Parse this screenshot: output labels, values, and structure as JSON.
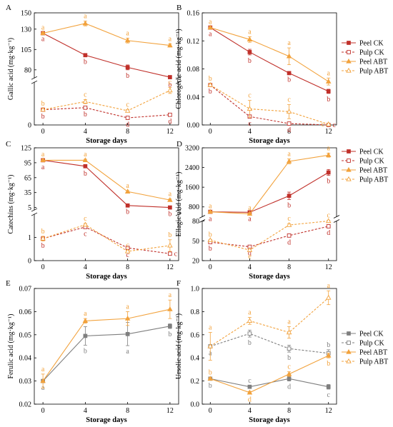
{
  "colors": {
    "peel_ck": "#c0302a",
    "pulp_ck": "#c0302a",
    "peel_abt": "#f2a23c",
    "pulp_abt": "#f2a23c",
    "grey": "#7f7f7f"
  },
  "chart_data": [
    {
      "type": "line",
      "panel": "A",
      "xlabel": "Storage days",
      "ylabel": "Gallic acid  (mg·kg⁻¹)",
      "x": [
        0,
        4,
        8,
        12
      ],
      "broken_axis": true,
      "upper": {
        "ylim": [
          70,
          150
        ],
        "ticks": [
          80,
          105,
          130,
          150
        ],
        "tick_labels": [
          "80",
          "105",
          "130",
          "150"
        ]
      },
      "lower": {
        "ylim": [
          0,
          42
        ],
        "ticks": [
          0
        ],
        "tick_labels": [
          "0"
        ]
      },
      "series": [
        {
          "name": "Peel CK",
          "style": "solid-filled",
          "colorKey": "peel_ck",
          "part": "upper",
          "values": [
            125,
            98,
            83,
            71
          ],
          "err": [
            0,
            1,
            3,
            2
          ],
          "letters": [
            "a",
            "b",
            "b",
            "b"
          ],
          "letter_pos": [
            "below",
            "below",
            "below",
            "below"
          ]
        },
        {
          "name": "Pulp CK",
          "style": "dash-open",
          "colorKey": "pulp_ck",
          "part": "lower",
          "values": [
            15,
            17,
            7,
            10
          ],
          "err": [
            1,
            1,
            1,
            1
          ],
          "letters": [
            "b",
            "b",
            "d",
            "d"
          ],
          "letter_pos": [
            "below",
            "below",
            "below",
            "below"
          ]
        },
        {
          "name": "Peel ABT",
          "style": "solid-filled",
          "colorKey": "peel_abt",
          "part": "upper",
          "values": [
            125,
            137,
            116,
            110
          ],
          "err": [
            1,
            3,
            3,
            2
          ],
          "letters": [
            "a",
            "a",
            "a",
            "a"
          ],
          "letter_pos": [
            "above",
            "above",
            "above",
            "above"
          ]
        },
        {
          "name": "Pulp ABT",
          "style": "dash-open",
          "colorKey": "pulp_abt",
          "part": "lower",
          "values": [
            15,
            23,
            14,
            34
          ],
          "err": [
            1,
            2,
            1,
            3
          ],
          "letters": [
            "b",
            "c",
            "c",
            "c"
          ],
          "letter_pos": [
            "above",
            "above",
            "above",
            "above"
          ]
        }
      ]
    },
    {
      "type": "line",
      "panel": "B",
      "xlabel": "Storage days",
      "ylabel": "Chlorogenic acid  (mg·kg⁻¹)",
      "x": [
        0,
        4,
        8,
        12
      ],
      "broken_axis": false,
      "main": {
        "ylim": [
          0,
          0.16
        ],
        "ticks": [
          0,
          0.04,
          0.08,
          0.12,
          0.16
        ],
        "tick_labels": [
          "0.00",
          "0.04",
          "0.08",
          "0.12",
          "0.16"
        ]
      },
      "legend": [
        "Peel CK",
        "Pulp CK",
        "Peel ABT",
        "Pulp ABT"
      ],
      "series": [
        {
          "name": "Peel CK",
          "style": "solid-filled",
          "colorKey": "peel_ck",
          "part": "main",
          "values": [
            0.139,
            0.104,
            0.074,
            0.048
          ],
          "err": [
            0.001,
            0.004,
            0.001,
            0.003
          ],
          "letters": [
            "a",
            "b",
            "b",
            "b"
          ],
          "letter_pos": [
            "below",
            "below",
            "below",
            "below"
          ]
        },
        {
          "name": "Pulp CK",
          "style": "dash-open",
          "colorKey": "pulp_ck",
          "part": "main",
          "values": [
            0.057,
            0.012,
            0.002,
            0.0
          ],
          "err": [
            0.001,
            0.002,
            0.001,
            0.0
          ],
          "letters": [
            "b",
            "c",
            "d",
            "c"
          ],
          "letter_pos": [
            "below",
            "below",
            "below",
            "right"
          ]
        },
        {
          "name": "Peel ABT",
          "style": "solid-filled",
          "colorKey": "peel_abt",
          "part": "main",
          "values": [
            0.139,
            0.122,
            0.098,
            0.062
          ],
          "err": [
            0.001,
            0.004,
            0.012,
            0.005
          ],
          "letters": [
            "a",
            "a",
            "a",
            "a"
          ],
          "letter_pos": [
            "above",
            "above",
            "above",
            "above"
          ]
        },
        {
          "name": "Pulp ABT",
          "style": "dash-open",
          "colorKey": "pulp_abt",
          "part": "main",
          "values": [
            0.057,
            0.023,
            0.019,
            0.001
          ],
          "err": [
            0.002,
            0.012,
            0.01,
            0.001
          ],
          "letters": [
            "b",
            "c",
            "c",
            "c"
          ],
          "letter_pos": [
            "above",
            "above",
            "above",
            "left"
          ]
        }
      ]
    },
    {
      "type": "line",
      "panel": "C",
      "xlabel": "Storage days",
      "ylabel": "Catechins  (mg·kg⁻¹)",
      "x": [
        0,
        4,
        8,
        12
      ],
      "broken_axis": true,
      "upper": {
        "ylim": [
          0,
          125
        ],
        "ticks": [
          5,
          35,
          65,
          95,
          125
        ],
        "tick_labels": [
          "5",
          "35",
          "65",
          "95",
          "125"
        ]
      },
      "lower": {
        "ylim": [
          0,
          2
        ],
        "ticks": [
          0,
          1
        ],
        "tick_labels": [
          "0",
          "1"
        ]
      },
      "series": [
        {
          "name": "Peel CK",
          "style": "solid-filled",
          "colorKey": "peel_ck",
          "part": "upper",
          "values": [
            100,
            88,
            9,
            5
          ],
          "err": [
            2,
            3,
            1,
            1
          ],
          "letters": [
            "a",
            "b",
            "b",
            "b"
          ],
          "letter_pos": [
            "below",
            "below",
            "below",
            "below"
          ]
        },
        {
          "name": "Pulp CK",
          "style": "dash-open",
          "colorKey": "pulp_ck",
          "part": "lower",
          "values": [
            0.95,
            1.45,
            0.55,
            0.3
          ],
          "err": [
            0.05,
            0.05,
            0.05,
            0.05
          ],
          "letters": [
            "b",
            "c",
            "c",
            "c"
          ],
          "letter_pos": [
            "below",
            "below",
            "below",
            "right"
          ]
        },
        {
          "name": "Peel ABT",
          "style": "solid-filled",
          "colorKey": "peel_abt",
          "part": "upper",
          "values": [
            100,
            100,
            37,
            20
          ],
          "err": [
            2,
            2,
            2,
            2
          ],
          "letters": [
            "a",
            "a",
            "a",
            "a"
          ],
          "letter_pos": [
            "above",
            "above",
            "above",
            "above"
          ]
        },
        {
          "name": "Pulp ABT",
          "style": "dash-open",
          "colorKey": "pulp_abt",
          "part": "lower",
          "values": [
            0.95,
            1.55,
            0.4,
            0.65
          ],
          "err": [
            0.1,
            0.05,
            0.05,
            0.25
          ],
          "letters": [
            "b",
            "c",
            "c",
            "b"
          ],
          "letter_pos": [
            "above",
            "above",
            "above",
            "above"
          ]
        }
      ]
    },
    {
      "type": "line",
      "panel": "D",
      "xlabel": "Storage days",
      "ylabel": "Ellagic acid  (mg·kg⁻¹)",
      "x": [
        0,
        4,
        8,
        12
      ],
      "broken_axis": true,
      "upper": {
        "ylim": [
          400,
          3200
        ],
        "ticks": [
          800,
          1600,
          2400,
          3200
        ],
        "tick_labels": [
          "800",
          "1600",
          "2400",
          "3200"
        ]
      },
      "lower": {
        "ylim": [
          20,
          80
        ],
        "ticks": [
          20,
          50,
          80
        ],
        "tick_labels": [
          "20",
          "50",
          "80"
        ]
      },
      "legend": [
        "Peel CK",
        "Pulp CK",
        "Peel ABT",
        "Pulp ABT"
      ],
      "series": [
        {
          "name": "Peel CK",
          "style": "solid-filled",
          "colorKey": "peel_ck",
          "part": "upper",
          "values": [
            600,
            580,
            1250,
            2200
          ],
          "err": [
            50,
            40,
            150,
            120
          ],
          "letters": [
            "a",
            "a",
            "b",
            "b"
          ],
          "letter_pos": [
            "below",
            "below",
            "below",
            "below"
          ]
        },
        {
          "name": "Pulp CK",
          "style": "dash-open",
          "colorKey": "pulp_ck",
          "part": "lower",
          "values": [
            48,
            41,
            58,
            72
          ],
          "err": [
            1,
            1,
            2,
            1
          ],
          "letters": [
            "b",
            "d",
            "d",
            "d"
          ],
          "letter_pos": [
            "below",
            "below",
            "below",
            "below"
          ]
        },
        {
          "name": "Peel ABT",
          "style": "solid-filled",
          "colorKey": "peel_abt",
          "part": "upper",
          "values": [
            600,
            520,
            2650,
            2900
          ],
          "err": [
            40,
            40,
            100,
            80
          ],
          "letters": [
            "a",
            "a",
            "a",
            "a"
          ],
          "letter_pos": [
            "above",
            "above",
            "above",
            "above"
          ]
        },
        {
          "name": "Pulp ABT",
          "style": "dash-open",
          "colorKey": "pulp_abt",
          "part": "lower",
          "values": [
            51,
            36,
            74,
            80
          ],
          "err": [
            1,
            1,
            2,
            1
          ],
          "letters": [
            "b",
            "e",
            "c",
            "c"
          ],
          "letter_pos": [
            "above",
            "below",
            "above",
            "above"
          ]
        }
      ]
    },
    {
      "type": "line",
      "panel": "E",
      "xlabel": "Storage days",
      "ylabel": "Ferulic acid  (mg·kg⁻¹)",
      "x": [
        0,
        4,
        8,
        12
      ],
      "broken_axis": false,
      "main": {
        "ylim": [
          0.02,
          0.07
        ],
        "ticks": [
          0.02,
          0.03,
          0.04,
          0.05,
          0.06,
          0.07
        ],
        "tick_labels": [
          "0.02",
          "0.03",
          "0.04",
          "0.05",
          "0.06",
          "0.07"
        ]
      },
      "series": [
        {
          "name": "Peel CK",
          "style": "solid-filled",
          "colorKey": "grey",
          "part": "main",
          "values": [
            0.03,
            0.0495,
            0.0503,
            0.0537
          ],
          "err": [
            0.0005,
            0.004,
            0.005,
            0.001
          ],
          "letters": [
            "a",
            "b",
            "a",
            "b"
          ],
          "letter_pos": [
            "below",
            "below",
            "below",
            "below"
          ]
        },
        {
          "name": "Peel ABT",
          "style": "solid-filled",
          "colorKey": "peel_abt",
          "part": "main",
          "values": [
            0.03,
            0.056,
            0.057,
            0.061
          ],
          "err": [
            0.003,
            0.001,
            0.003,
            0.004
          ],
          "letters": [
            "a",
            "a",
            "a",
            "a"
          ],
          "letter_pos": [
            "above",
            "above",
            "above",
            "above"
          ]
        }
      ]
    },
    {
      "type": "line",
      "panel": "F",
      "xlabel": "Storage days",
      "ylabel": "Ursolic acid  (mg·kg⁻¹)",
      "x": [
        0,
        4,
        8,
        12
      ],
      "broken_axis": false,
      "main": {
        "ylim": [
          0,
          1.0
        ],
        "ticks": [
          0,
          0.2,
          0.4,
          0.6,
          0.8,
          1.0
        ],
        "tick_labels": [
          "0.0",
          "0.2",
          "0.4",
          "0.6",
          "0.8",
          "1.0"
        ]
      },
      "legend": [
        "Peel CK",
        "Pulp CK",
        "Peel ABT",
        "Pulp ABT"
      ],
      "series": [
        {
          "name": "Peel CK",
          "style": "solid-filled",
          "colorKey": "grey",
          "part": "main",
          "values": [
            0.22,
            0.15,
            0.22,
            0.15
          ],
          "err": [
            0.01,
            0.01,
            0.02,
            0.02
          ],
          "letters": [
            "b",
            "c",
            "d",
            "c"
          ],
          "letter_pos": [
            "below",
            "above",
            "below",
            "below"
          ]
        },
        {
          "name": "Pulp CK",
          "style": "dash-open",
          "colorKey": "grey",
          "part": "main",
          "values": [
            0.5,
            0.61,
            0.48,
            0.44
          ],
          "err": [
            0.01,
            0.03,
            0.03,
            0.03
          ],
          "letters": [
            "a",
            "b",
            "b",
            "b"
          ],
          "letter_pos": [
            "below",
            "below",
            "below",
            "above"
          ]
        },
        {
          "name": "Peel ABT",
          "style": "solid-filled",
          "colorKey": "peel_abt",
          "part": "main",
          "values": [
            0.22,
            0.1,
            0.26,
            0.42
          ],
          "err": [
            0.01,
            0.01,
            0.02,
            0.02
          ],
          "letters": [
            "b",
            "d",
            "c",
            "b"
          ],
          "letter_pos": [
            "above",
            "below",
            "above",
            "below"
          ]
        },
        {
          "name": "Pulp ABT",
          "style": "dash-open",
          "colorKey": "peel_abt",
          "part": "main",
          "values": [
            0.5,
            0.72,
            0.62,
            0.92
          ],
          "err": [
            0.12,
            0.03,
            0.05,
            0.06
          ],
          "letters": [
            "a",
            "a",
            "a",
            "a"
          ],
          "letter_pos": [
            "above",
            "above",
            "above",
            "above"
          ]
        }
      ]
    }
  ]
}
